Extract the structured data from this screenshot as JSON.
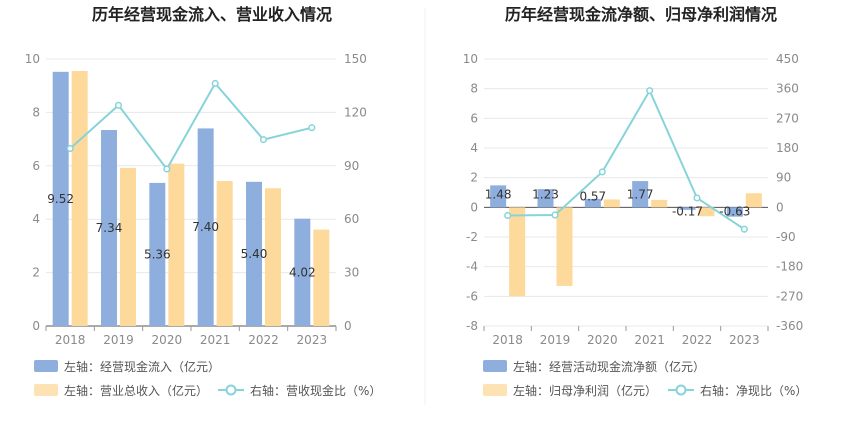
{
  "chart_data": [
    {
      "type": "bar",
      "title": "历年经营现金流入、营业收入情况",
      "categories": [
        "2018",
        "2019",
        "2020",
        "2021",
        "2022",
        "2023"
      ],
      "left_axis": {
        "min": 0,
        "max": 10,
        "ticks": [
          "0",
          "2",
          "4",
          "6",
          "8",
          "10"
        ]
      },
      "right_axis": {
        "min": 0,
        "max": 150,
        "ticks": [
          "0",
          "30",
          "60",
          "90",
          "120",
          "150"
        ]
      },
      "series": [
        {
          "name": "左轴：经营现金流入（亿元）",
          "axis": "left",
          "kind": "bar",
          "color": "#8eaedd",
          "values": [
            9.52,
            7.34,
            5.36,
            7.4,
            5.4,
            4.02
          ],
          "labels": [
            "9.52",
            "7.34",
            "5.36",
            "7.40",
            "5.40",
            "4.02"
          ]
        },
        {
          "name": "左轴：营业总收入（亿元）",
          "axis": "left",
          "kind": "bar",
          "color": "#fdd99b",
          "values": [
            9.55,
            5.92,
            6.08,
            5.43,
            5.16,
            3.61
          ]
        },
        {
          "name": "右轴：营收现金比（%）",
          "axis": "right",
          "kind": "line",
          "color": "#86d4da",
          "values": [
            99.7,
            124.0,
            88.2,
            136.3,
            104.7,
            111.4
          ]
        }
      ]
    },
    {
      "type": "bar",
      "title": "历年经营现金流净额、归母净利润情况",
      "categories": [
        "2018",
        "2019",
        "2020",
        "2021",
        "2022",
        "2023"
      ],
      "left_axis": {
        "min": -8,
        "max": 10,
        "ticks": [
          "-8",
          "-6",
          "-4",
          "-2",
          "0",
          "2",
          "4",
          "6",
          "8",
          "10"
        ]
      },
      "right_axis": {
        "min": -360,
        "max": 450,
        "ticks": [
          "-360",
          "-270",
          "-180",
          "-90",
          "0",
          "90",
          "180",
          "270",
          "360",
          "450"
        ]
      },
      "series": [
        {
          "name": "左轴：经营活动现金流净额（亿元）",
          "axis": "left",
          "kind": "bar",
          "color": "#8eaedd",
          "values": [
            1.48,
            1.23,
            0.57,
            1.77,
            -0.17,
            -0.63
          ],
          "labels": [
            "1.48",
            "1.23",
            "0.57",
            "1.77",
            "-0.17",
            "-0.63"
          ]
        },
        {
          "name": "左轴：归母净利润（亿元）",
          "axis": "left",
          "kind": "bar",
          "color": "#fdd99b",
          "values": [
            -6.0,
            -5.3,
            0.53,
            0.5,
            -0.6,
            0.95
          ]
        },
        {
          "name": "右轴：净现比（%）",
          "axis": "right",
          "kind": "line",
          "color": "#86d4da",
          "values": [
            -24.7,
            -23.2,
            107.5,
            354.0,
            28.3,
            -66.3
          ]
        }
      ]
    }
  ]
}
